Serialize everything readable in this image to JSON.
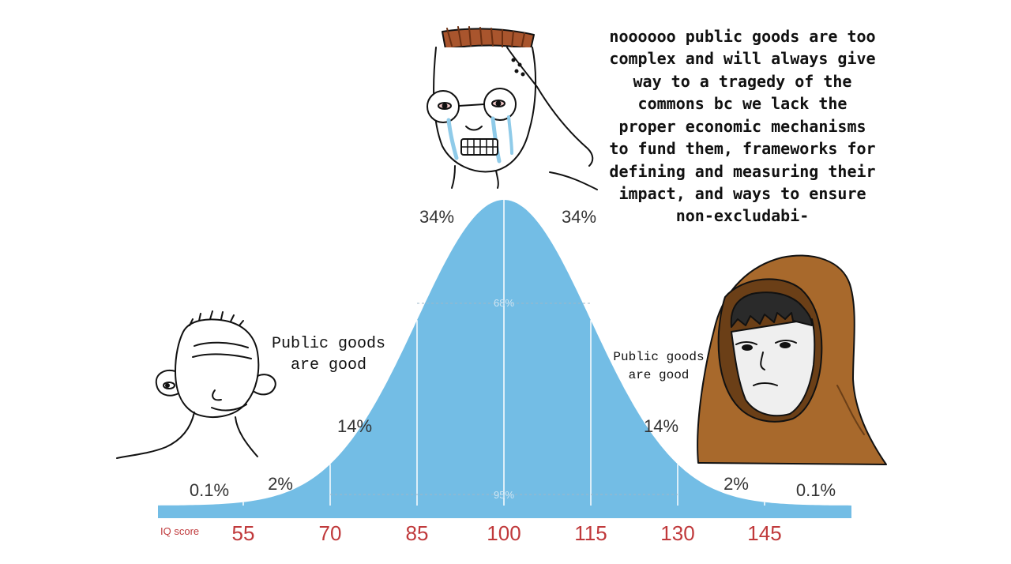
{
  "chart_data": {
    "type": "area",
    "xlabel": "IQ score",
    "x_ticks": [
      55,
      70,
      85,
      100,
      115,
      130,
      145
    ],
    "x_tick_labels": [
      "55",
      "70",
      "85",
      "100",
      "115",
      "130",
      "145"
    ],
    "mean": 100,
    "sd": 15,
    "region_percentages": [
      {
        "label": "0.1%"
      },
      {
        "label": "2%"
      },
      {
        "label": "14%"
      },
      {
        "label": "34%"
      },
      {
        "label": "34%"
      },
      {
        "label": "14%"
      },
      {
        "label": "2%"
      },
      {
        "label": "0.1%"
      }
    ],
    "inner_labels": {
      "one_sd": "68%",
      "two_sd": "95%"
    }
  },
  "characters": {
    "left": {
      "speech": "Public goods are good",
      "lines": [
        "Public goods",
        "are good"
      ]
    },
    "middle": {
      "speech": "noooooo public goods are too complex and will always give way to a tragedy of the commons bc we lack the proper economic mechanisms to fund them, frameworks for defining and measuring their impact, and ways to ensure non-excludabi-",
      "lines": [
        "noooooo public goods are too",
        "complex and will always give",
        "way to a tragedy of the",
        "commons bc we lack the",
        "proper economic mechanisms",
        "to fund them, frameworks for",
        "defining and measuring their",
        "impact, and ways to ensure",
        "non-excludabi-"
      ]
    },
    "right": {
      "speech": "Public goods are good",
      "lines": [
        "Public goods",
        "are good"
      ]
    }
  },
  "colors": {
    "curve_fill": "#73bde5",
    "axis_bar": "#73bde5",
    "tick_text": "#c0393b",
    "hood": "#a8692c",
    "hair_middle": "#a9552d"
  }
}
